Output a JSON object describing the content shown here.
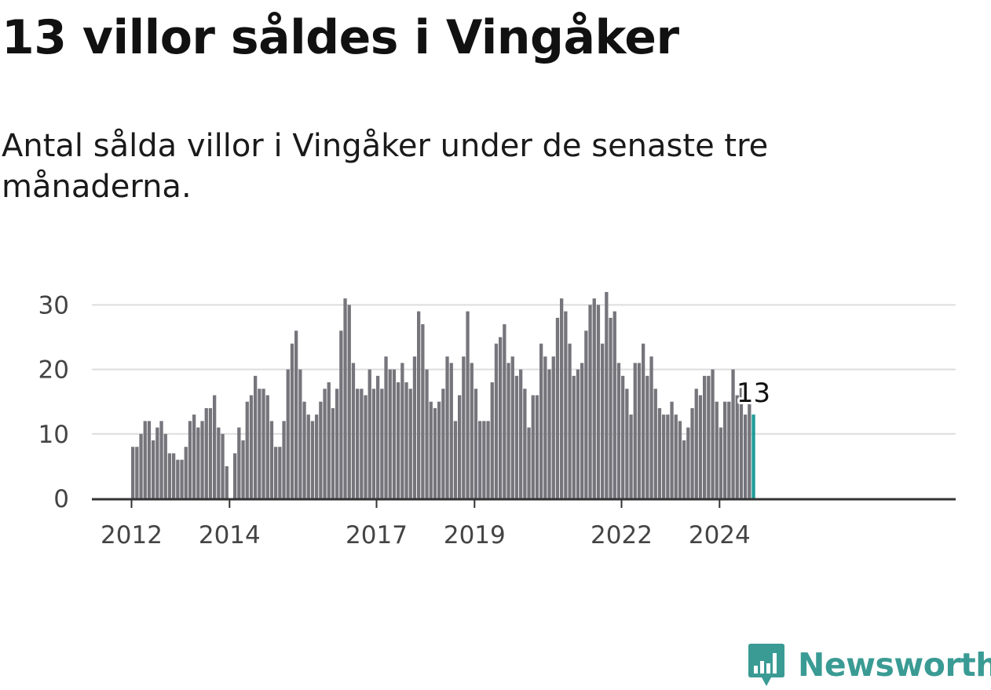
{
  "title": "13 villor såldes i Vingåker",
  "subtitle": "Antal sålda villor i Vingåker under de senaste tre månaderna.",
  "brand": {
    "name": "Newsworthy",
    "color": "#3a9b94",
    "icon": "newsworthy-logo-icon"
  },
  "chart_data": {
    "type": "bar",
    "title": "",
    "xlabel": "",
    "ylabel": "",
    "ylim": [
      0,
      32
    ],
    "yticks": [
      0,
      10,
      20,
      30
    ],
    "grid": true,
    "legend": "none",
    "x_start": "2012-01",
    "x_ticks": [
      {
        "label": "2012",
        "date": "2012-01"
      },
      {
        "label": "2014",
        "date": "2014-01"
      },
      {
        "label": "2017",
        "date": "2017-01"
      },
      {
        "label": "2019",
        "date": "2019-01"
      },
      {
        "label": "2022",
        "date": "2022-01"
      },
      {
        "label": "2024",
        "date": "2024-01"
      }
    ],
    "bar_color": "#76757c",
    "highlight_color": "#1e9c96",
    "highlight_label": "13",
    "values": [
      8,
      8,
      10,
      12,
      12,
      9,
      11,
      12,
      10,
      7,
      7,
      6,
      6,
      8,
      12,
      13,
      11,
      12,
      14,
      14,
      16,
      11,
      10,
      5,
      0,
      7,
      11,
      9,
      15,
      16,
      19,
      17,
      17,
      16,
      12,
      8,
      8,
      12,
      20,
      24,
      26,
      20,
      15,
      13,
      12,
      13,
      15,
      17,
      18,
      14,
      17,
      26,
      31,
      30,
      21,
      17,
      17,
      16,
      20,
      17,
      19,
      17,
      22,
      20,
      20,
      18,
      21,
      18,
      17,
      22,
      29,
      27,
      20,
      15,
      14,
      15,
      17,
      22,
      21,
      12,
      16,
      22,
      29,
      21,
      17,
      12,
      12,
      12,
      18,
      24,
      25,
      27,
      21,
      22,
      19,
      20,
      17,
      11,
      16,
      16,
      24,
      22,
      20,
      22,
      28,
      31,
      29,
      24,
      19,
      20,
      21,
      26,
      30,
      31,
      30,
      24,
      32,
      28,
      29,
      21,
      19,
      17,
      13,
      21,
      21,
      24,
      19,
      22,
      17,
      14,
      13,
      13,
      15,
      13,
      12,
      9,
      11,
      14,
      17,
      16,
      19,
      19,
      20,
      15,
      11,
      15,
      15,
      20,
      16,
      18,
      13,
      15,
      13
    ]
  }
}
